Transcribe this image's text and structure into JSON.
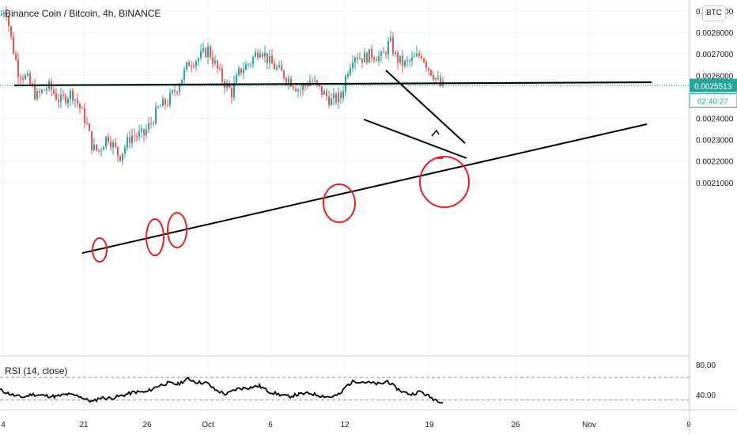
{
  "header": {
    "title": "Binance Coin / Bitcoin, 4h, BINANCE",
    "currency": "BTC"
  },
  "rsi": {
    "label": "RSI (14, close)",
    "levels": [
      "80.00",
      "40.00"
    ],
    "upper": 70,
    "lower": 30
  },
  "price_label": {
    "value": "0.0025513",
    "countdown": "02:40:27",
    "color": "#26a69a"
  },
  "colors": {
    "up": "#26a69a",
    "down": "#ef5350",
    "line": "#000000",
    "circle": "#e81e25"
  },
  "chart_data": {
    "type": "candlestick",
    "symbol": "Binance Coin / Bitcoin",
    "interval": "4h",
    "exchange": "BINANCE",
    "y_ticks": [
      "0.0029000",
      "0.0028000",
      "0.0027000",
      "0.0026000",
      "0.0024000",
      "0.0023000",
      "0.0022000",
      "0.0021000"
    ],
    "x_ticks": [
      "4",
      "21",
      "26",
      "Oct",
      "6",
      "12",
      "19",
      "26",
      "Nov",
      "9"
    ],
    "current_price": 0.0025513,
    "approx_close_path": [
      {
        "x": "4",
        "y": 0.00285
      },
      {
        "x": "21",
        "y": 0.00225
      },
      {
        "x": "26",
        "y": 0.00232
      },
      {
        "x": "Oct",
        "y": 0.00268
      },
      {
        "x": "6",
        "y": 0.00262
      },
      {
        "x": "12",
        "y": 0.00268
      },
      {
        "x": "19",
        "y": 0.00255
      }
    ]
  }
}
